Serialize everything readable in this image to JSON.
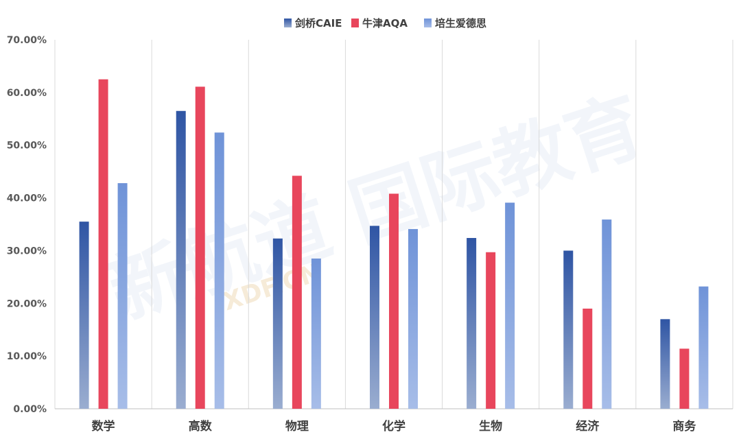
{
  "chart_data": {
    "type": "bar",
    "categories": [
      "数学",
      "高数",
      "物理",
      "化学",
      "生物",
      "经济",
      "商务"
    ],
    "series": [
      {
        "name": "剑桥CAIE",
        "values": [
          35.5,
          56.5,
          32.3,
          34.7,
          32.4,
          30.0,
          17.0
        ],
        "color": "#2f55a4",
        "color_fade": "#9aadd0"
      },
      {
        "name": "牛津AQA",
        "values": [
          62.5,
          61.1,
          44.2,
          40.8,
          29.7,
          19.0,
          11.4
        ],
        "color": "#e8465c"
      },
      {
        "name": "培生爱德思",
        "values": [
          42.8,
          52.4,
          28.5,
          34.1,
          39.1,
          35.9,
          23.2
        ],
        "color": "#6f93d8",
        "color_fade": "#a7bde8"
      }
    ],
    "yticks": [
      "0.00%",
      "10.00%",
      "20.00%",
      "30.00%",
      "40.00%",
      "50.00%",
      "60.00%",
      "70.00%"
    ],
    "ylim": [
      0,
      70
    ],
    "legend_position": "top-center",
    "grid": "vertical separators between categories"
  },
  "watermark": {
    "text": "新航道 国际教育",
    "sub": "XDF.CN"
  }
}
